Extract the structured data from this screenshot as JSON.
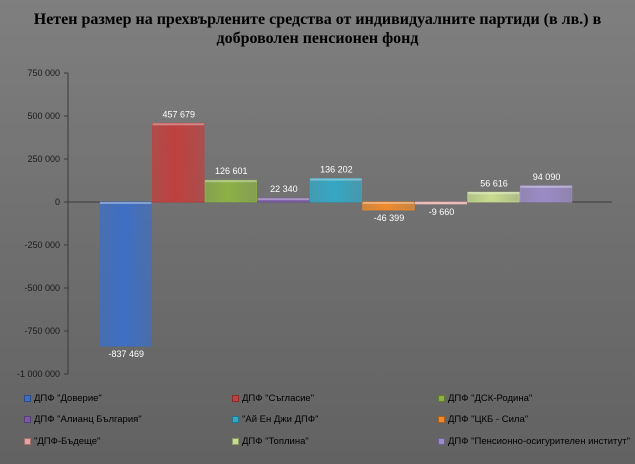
{
  "chart_data": {
    "type": "bar",
    "title_lines": [
      "Нетен размер на прехвърлените средства от индивидуалните партиди (в лв.) в",
      "доброволен пенсионен фонд"
    ],
    "ylim": [
      -1000000,
      750000
    ],
    "yticks": [
      750000,
      500000,
      250000,
      0,
      -250000,
      -500000,
      -750000,
      -1000000
    ],
    "ytick_labels": [
      "750 000",
      "500 000",
      "250 000",
      "0",
      "-250 000",
      "-500 000",
      "-750 000",
      "-1 000 000"
    ],
    "grid": false,
    "legend_position": "bottom",
    "series": [
      {
        "name": "ДПФ \"Доверие\"",
        "value": -837469,
        "label": "-837 469",
        "color": "#3e6fc4"
      },
      {
        "name": "ДПФ \"Съгласие\"",
        "value": 457679,
        "label": "457 679",
        "color": "#c0403e"
      },
      {
        "name": "ДПФ \"ДСК-Родина\"",
        "value": 126601,
        "label": "126 601",
        "color": "#8db045"
      },
      {
        "name": "ДПФ \"Алианц България\"",
        "value": 22340,
        "label": "22 340",
        "color": "#7a5aa6"
      },
      {
        "name": "\"Ай Ен Джи ДПФ\"",
        "value": 136202,
        "label": "136 202",
        "color": "#35a7c4"
      },
      {
        "name": "ДПФ \"ЦКБ - Сила\"",
        "value": -46399,
        "label": "-46 399",
        "color": "#ef8a2c"
      },
      {
        "name": "\"ДПФ-Бъдеще\"",
        "value": -9660,
        "label": "-9 660",
        "color": "#e8a0a0"
      },
      {
        "name": "ДПФ \"Топлина\"",
        "value": 56616,
        "label": "56 616",
        "color": "#c8dc8f"
      },
      {
        "name": "ДПФ \"Пенсионно-осигурителен институт\"",
        "value": 94090,
        "label": "94 090",
        "color": "#9b8bc6"
      }
    ]
  }
}
